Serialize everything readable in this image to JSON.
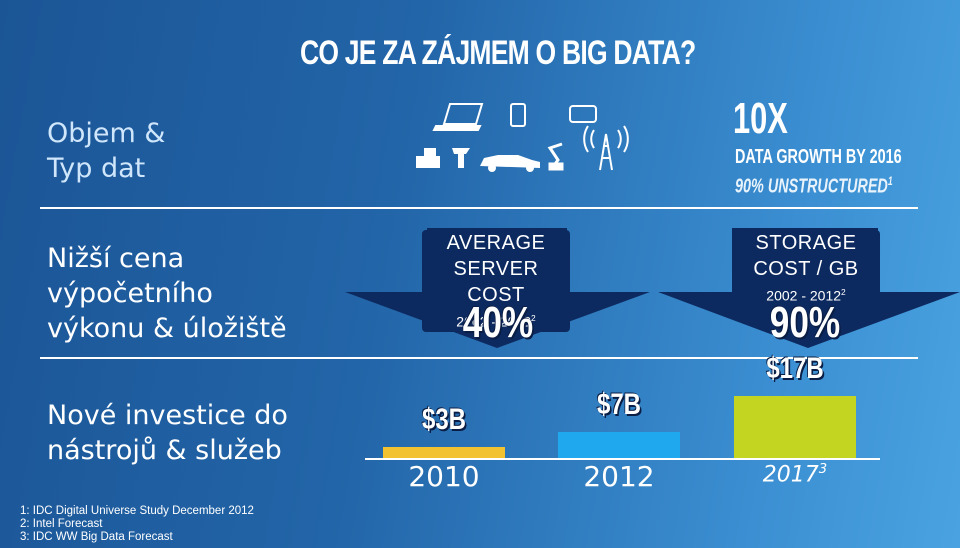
{
  "title": "CO JE ZA ZÁJMEM O BIG DATA?",
  "rows": {
    "row1": "Objem & Typ dat",
    "row2": "Nižší cena výpočetního výkonu & úložiště",
    "row3": "Nové investice do nástrojů & služeb"
  },
  "row1_lines": [
    "Objem &",
    "Typ dat"
  ],
  "row2_lines": [
    "Nižší cena",
    "výpočetního",
    "výkonu & úložiště"
  ],
  "row3_lines": [
    "Nové investice do",
    "nástrojů & služeb"
  ],
  "growth": {
    "headline": "10X",
    "line1": "DATA GROWTH BY 2016",
    "line2": "90% UNSTRUCTURED",
    "line2_sup": "1"
  },
  "server_cost": {
    "line1": "AVERAGE",
    "line2": "SERVER COST",
    "period": "2002 - 2012",
    "period_sup": "2",
    "percent": "40%"
  },
  "storage_cost": {
    "line1": "STORAGE",
    "line2": "COST / GB",
    "period": "2002 - 2012",
    "period_sup": "2",
    "percent": "90%"
  },
  "icons": [
    "laptop-icon",
    "tablet-icon",
    "phone-icon",
    "cash-register-icon",
    "kiosk-icon",
    "car-icon",
    "robot-arm-icon",
    "antenna-tower-icon"
  ],
  "colors": {
    "bar_2010": "#f2c230",
    "bar_2012": "#1fa8ee",
    "bar_2017": "#c3d520"
  },
  "footnotes": [
    "1: IDC Digital Universe Study December 2012",
    "2: Intel Forecast",
    "3:  IDC WW Big Data Forecast"
  ],
  "chart_data": {
    "type": "bar",
    "categories": [
      "2010",
      "2012",
      "2017"
    ],
    "category_sups": [
      "",
      "",
      "3"
    ],
    "values": [
      3,
      7,
      17
    ],
    "value_labels": [
      "$3B",
      "$7B",
      "$17B"
    ],
    "ylim": [
      0,
      17
    ]
  }
}
